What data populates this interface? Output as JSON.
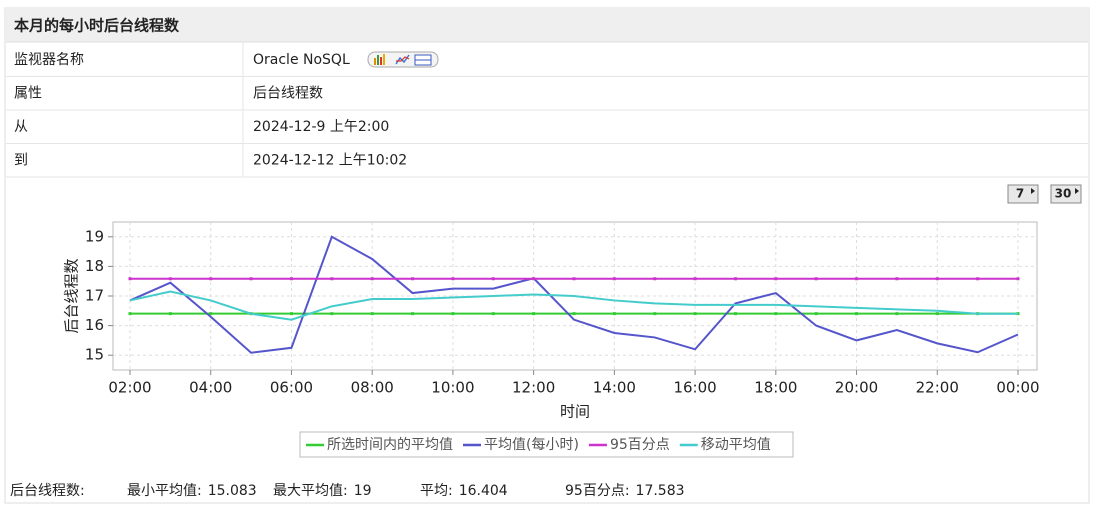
{
  "header": {
    "title": "本月的每小时后台线程数"
  },
  "table": {
    "rows": [
      [
        "监视器名称",
        "Oracle NoSQL"
      ],
      [
        "属性",
        "后台线程数"
      ],
      [
        "从",
        "2024-12-9 上午2:00"
      ],
      [
        "到",
        "2024-12-12 上午10:02"
      ]
    ]
  },
  "buttons": [
    "7",
    "30"
  ],
  "chart": {
    "type": "line",
    "ylabel": "后台线程数",
    "xlabel": "时间",
    "categories": [
      "02:00",
      null,
      "04:00",
      null,
      "06:00",
      null,
      "08:00",
      null,
      "10:00",
      null,
      "12:00",
      null,
      "14:00",
      null,
      "16:00",
      null,
      "18:00",
      null,
      "20:00",
      null,
      "22:00",
      null,
      "00:00"
    ],
    "ylim": [
      14.5,
      19.5
    ],
    "yticks": [
      15,
      16,
      17,
      18,
      19
    ],
    "grid": true,
    "series": [
      {
        "name": "所选时间内的平均值",
        "color": "#33cc33",
        "markers": true,
        "values": [
          16.404,
          16.404,
          16.404,
          16.404,
          16.404,
          16.404,
          16.404,
          16.404,
          16.404,
          16.404,
          16.404,
          16.404,
          16.404,
          16.404,
          16.404,
          16.404,
          16.404,
          16.404,
          16.404,
          16.404,
          16.404,
          16.404,
          16.404
        ]
      },
      {
        "name": "平均值(每小时)",
        "color": "#5555cc",
        "markers": false,
        "values": [
          16.85,
          17.45,
          16.3,
          15.083,
          15.25,
          19,
          18.25,
          17.1,
          17.25,
          17.25,
          17.6,
          16.2,
          15.75,
          15.6,
          15.2,
          16.75,
          17.1,
          16.0,
          15.5,
          15.85,
          15.4,
          15.1,
          15.7
        ]
      },
      {
        "name": "95百分点",
        "color": "#cc33cc",
        "markers": true,
        "values": [
          17.583,
          17.583,
          17.583,
          17.583,
          17.583,
          17.583,
          17.583,
          17.583,
          17.583,
          17.583,
          17.583,
          17.583,
          17.583,
          17.583,
          17.583,
          17.583,
          17.583,
          17.583,
          17.583,
          17.583,
          17.583,
          17.583,
          17.583
        ]
      },
      {
        "name": "移动平均值",
        "color": "#44cccc",
        "markers": false,
        "values": [
          16.85,
          17.15,
          16.85,
          16.4,
          16.2,
          16.65,
          16.9,
          16.9,
          16.95,
          17.0,
          17.05,
          17.0,
          16.85,
          16.75,
          16.7,
          16.7,
          16.7,
          16.65,
          16.6,
          16.55,
          16.5,
          16.4,
          16.4
        ]
      }
    ]
  },
  "footer": {
    "label": "后台线程数:",
    "stats": [
      {
        "label": "最小平均值:",
        "value": 15.083
      },
      {
        "label": "最大平均值:",
        "value": 19
      },
      {
        "label": "平均:",
        "value": 16.404
      },
      {
        "label": "95百分点:",
        "value": 17.583
      }
    ]
  }
}
